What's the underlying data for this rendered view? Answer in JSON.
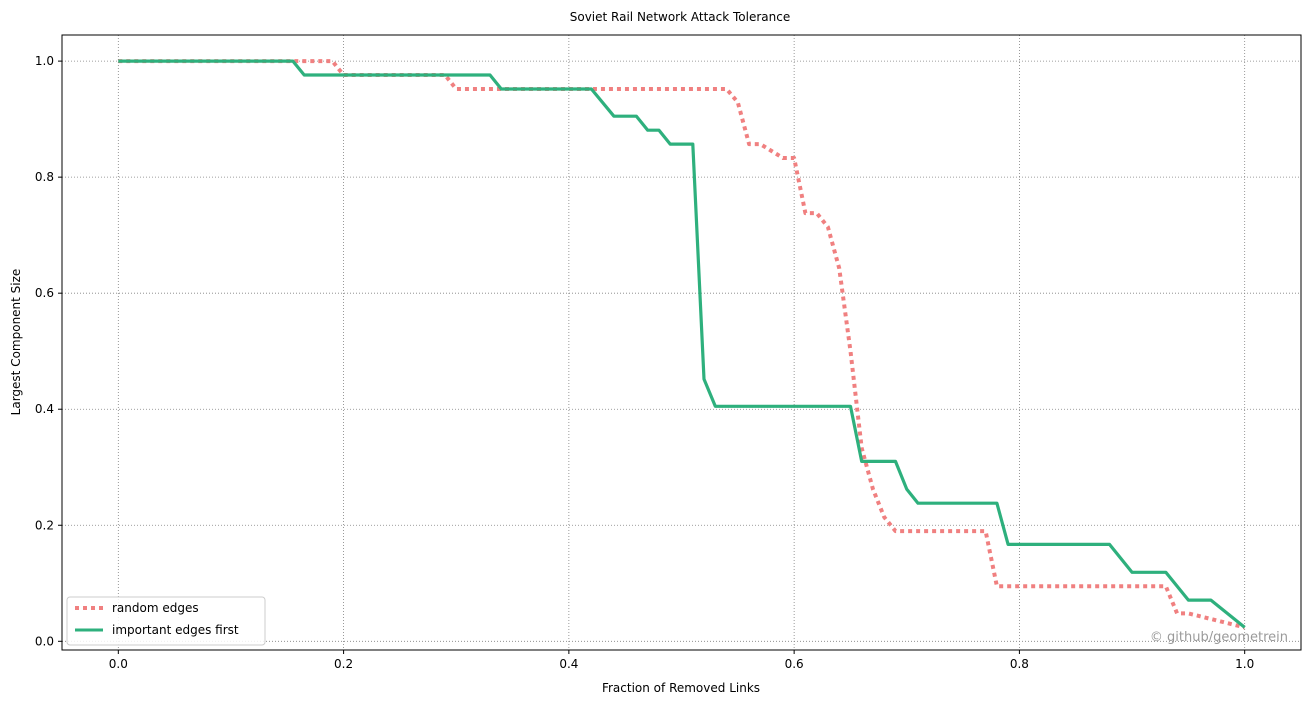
{
  "chart_data": {
    "type": "line",
    "title": "Soviet Rail Network Attack Tolerance",
    "xlabel": "Fraction of Removed Links",
    "ylabel": "Largest Component Size",
    "xlim": [
      -0.05,
      1.05
    ],
    "ylim": [
      -0.015,
      1.045
    ],
    "xticks": [
      0.0,
      0.2,
      0.4,
      0.6,
      0.8,
      1.0
    ],
    "yticks": [
      0.0,
      0.2,
      0.4,
      0.6,
      0.8,
      1.0
    ],
    "xtick_labels": [
      "0.0",
      "0.2",
      "0.4",
      "0.6",
      "0.8",
      "1.0"
    ],
    "ytick_labels": [
      "0.0",
      "0.2",
      "0.4",
      "0.6",
      "0.8",
      "1.0"
    ],
    "grid": true,
    "legend_position": "lower-left",
    "series": [
      {
        "name": "random edges",
        "color": "#f08080",
        "style": "dotted",
        "x": [
          0.0,
          0.18,
          0.19,
          0.2,
          0.29,
          0.3,
          0.31,
          0.54,
          0.55,
          0.56,
          0.57,
          0.58,
          0.59,
          0.6,
          0.61,
          0.62,
          0.63,
          0.64,
          0.65,
          0.66,
          0.67,
          0.68,
          0.69,
          0.7,
          0.77,
          0.78,
          0.79,
          0.93,
          0.94,
          0.95,
          1.0
        ],
        "y": [
          1.0,
          1.0,
          1.0,
          0.976,
          0.976,
          0.952,
          0.952,
          0.952,
          0.929,
          0.857,
          0.857,
          0.845,
          0.833,
          0.833,
          0.738,
          0.738,
          0.714,
          0.643,
          0.5,
          0.333,
          0.262,
          0.214,
          0.19,
          0.19,
          0.19,
          0.095,
          0.095,
          0.095,
          0.048,
          0.048,
          0.024
        ]
      },
      {
        "name": "important edges first",
        "color": "#2eb07d",
        "style": "solid",
        "x": [
          0.0,
          0.155,
          0.165,
          0.33,
          0.34,
          0.42,
          0.44,
          0.46,
          0.47,
          0.48,
          0.49,
          0.5,
          0.51,
          0.52,
          0.53,
          0.64,
          0.65,
          0.66,
          0.69,
          0.7,
          0.71,
          0.78,
          0.79,
          0.88,
          0.9,
          0.93,
          0.95,
          0.97,
          1.0
        ],
        "y": [
          1.0,
          1.0,
          0.976,
          0.976,
          0.952,
          0.952,
          0.905,
          0.905,
          0.881,
          0.881,
          0.857,
          0.857,
          0.857,
          0.452,
          0.405,
          0.405,
          0.405,
          0.31,
          0.31,
          0.262,
          0.238,
          0.238,
          0.167,
          0.167,
          0.119,
          0.119,
          0.071,
          0.071,
          0.024
        ]
      }
    ]
  },
  "watermark": "© github/geometrein"
}
